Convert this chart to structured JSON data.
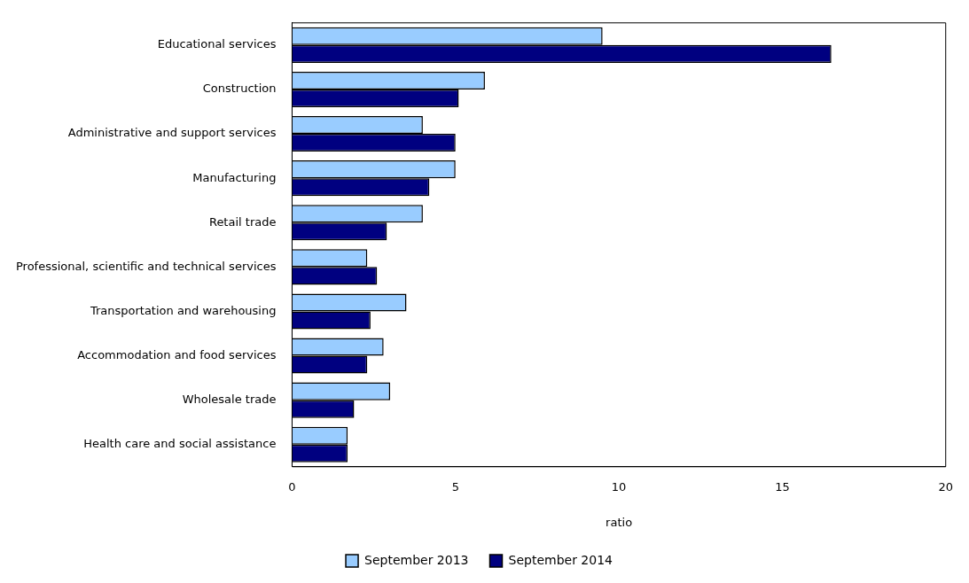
{
  "chart_data": {
    "type": "bar",
    "orientation": "horizontal",
    "xlabel": "ratio",
    "categories": [
      "Educational services",
      "Construction",
      "Administrative and support services",
      "Manufacturing",
      "Retail trade",
      "Professional, scientific and technical services",
      "Transportation and warehousing",
      "Accommodation and food services",
      "Wholesale trade",
      "Health care and social assistance"
    ],
    "series": [
      {
        "name": "September 2013",
        "color": "#99ccff",
        "values": [
          9.5,
          5.9,
          4.0,
          5.0,
          4.0,
          2.3,
          3.5,
          2.8,
          3.0,
          1.7
        ]
      },
      {
        "name": "September 2014",
        "color": "#000080",
        "values": [
          16.5,
          5.1,
          5.0,
          4.2,
          2.9,
          2.6,
          2.4,
          2.3,
          1.9,
          1.7
        ]
      }
    ],
    "xlim": [
      0,
      20
    ],
    "xticks": [
      0,
      5,
      10,
      15,
      20
    ],
    "grid": false,
    "legend": "bottom"
  }
}
